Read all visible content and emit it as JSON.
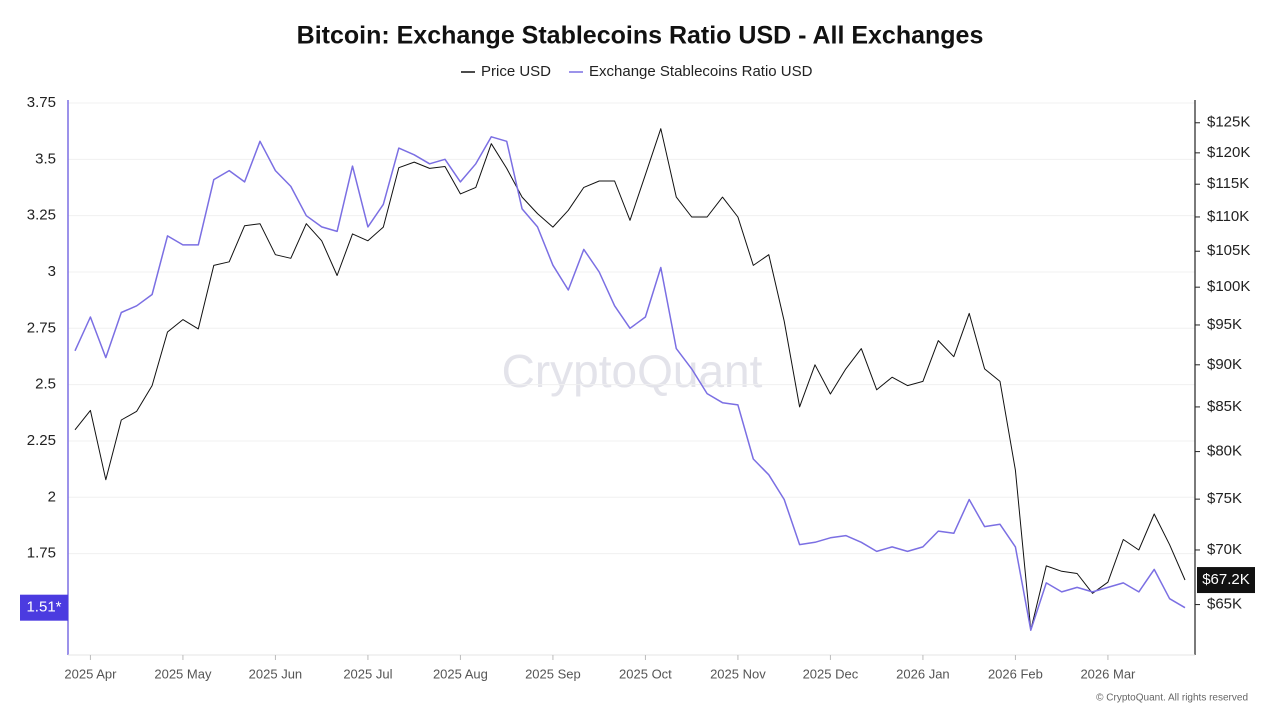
{
  "chart_data": {
    "type": "line",
    "title": "Bitcoin: Exchange Stablecoins Ratio USD - All Exchanges",
    "watermark": "CryptoQuant",
    "footer": "© CryptoQuant. All rights reserved",
    "categories": [
      null,
      "2025 Apr",
      null,
      null,
      null,
      null,
      null,
      "2025 May",
      null,
      null,
      null,
      null,
      null,
      "2025 Jun",
      null,
      null,
      null,
      null,
      null,
      "2025 Jul",
      null,
      null,
      null,
      null,
      null,
      "2025 Aug",
      null,
      null,
      null,
      null,
      null,
      "2025 Sep",
      null,
      null,
      null,
      null,
      null,
      "2025 Oct",
      null,
      null,
      null,
      null,
      null,
      "2025 Nov",
      null,
      null,
      null,
      null,
      null,
      "2025 Dec",
      null,
      null,
      null,
      null,
      null,
      "2026 Jan",
      null,
      null,
      null,
      null,
      null,
      "2026 Feb",
      null,
      null,
      null,
      null,
      null,
      "2026 Mar",
      null,
      null,
      null,
      null,
      null
    ],
    "series": [
      {
        "name": "Price USD",
        "color": "#111111",
        "axis": "y2",
        "last_label": "$67.2K",
        "values": [
          82400,
          84600,
          77000,
          83500,
          84500,
          87500,
          94100,
          95700,
          94500,
          103000,
          103500,
          108700,
          109000,
          104500,
          104000,
          109000,
          106500,
          101600,
          107500,
          106500,
          108500,
          117600,
          118500,
          117500,
          117800,
          113500,
          114500,
          121500,
          117500,
          113000,
          110500,
          108500,
          111000,
          114500,
          115500,
          115500,
          109500,
          116500,
          124000,
          113000,
          110000,
          110000,
          113000,
          110000,
          103000,
          104500,
          95500,
          85000,
          90000,
          86500,
          89500,
          92000,
          87000,
          88500,
          87500,
          88000,
          93000,
          91000,
          96500,
          89500,
          88000,
          78000,
          62800,
          68500,
          68000,
          67800,
          66000,
          67000,
          71000,
          70000,
          73500,
          70500,
          67200
        ]
      },
      {
        "name": "Exchange Stablecoins Ratio USD",
        "color": "#7b6fe3",
        "axis": "y",
        "last_label": "1.51*",
        "values": [
          2.65,
          2.8,
          2.62,
          2.82,
          2.85,
          2.9,
          3.16,
          3.12,
          3.12,
          3.41,
          3.45,
          3.4,
          3.58,
          3.45,
          3.38,
          3.25,
          3.2,
          3.18,
          3.47,
          3.2,
          3.3,
          3.55,
          3.52,
          3.48,
          3.5,
          3.4,
          3.48,
          3.6,
          3.58,
          3.28,
          3.2,
          3.03,
          2.92,
          3.1,
          3.0,
          2.85,
          2.75,
          2.8,
          3.02,
          2.66,
          2.57,
          2.46,
          2.42,
          2.41,
          2.17,
          2.1,
          1.99,
          1.79,
          1.8,
          1.82,
          1.83,
          1.8,
          1.76,
          1.78,
          1.76,
          1.78,
          1.85,
          1.84,
          1.99,
          1.87,
          1.88,
          1.78,
          1.41,
          1.62,
          1.58,
          1.6,
          1.58,
          1.6,
          1.62,
          1.58,
          1.68,
          1.55,
          1.51
        ]
      }
    ],
    "ylim": [
      1.3,
      3.75
    ],
    "yticks": [
      1.75,
      2,
      2.25,
      2.5,
      2.75,
      3,
      3.25,
      3.5,
      3.75
    ],
    "y2lim": [
      60700,
      128400
    ],
    "y2scale": "log",
    "y2ticks": [
      {
        "value": 65000,
        "label": "$65K"
      },
      {
        "value": 70000,
        "label": "$70K"
      },
      {
        "value": 75000,
        "label": "$75K"
      },
      {
        "value": 80000,
        "label": "$80K"
      },
      {
        "value": 85000,
        "label": "$85K"
      },
      {
        "value": 90000,
        "label": "$90K"
      },
      {
        "value": 95000,
        "label": "$95K"
      },
      {
        "value": 100000,
        "label": "$100K"
      },
      {
        "value": 105000,
        "label": "$105K"
      },
      {
        "value": 110000,
        "label": "$110K"
      },
      {
        "value": 115000,
        "label": "$115K"
      },
      {
        "value": 120000,
        "label": "$120K"
      },
      {
        "value": 125000,
        "label": "$125K"
      }
    ],
    "grid": true
  }
}
